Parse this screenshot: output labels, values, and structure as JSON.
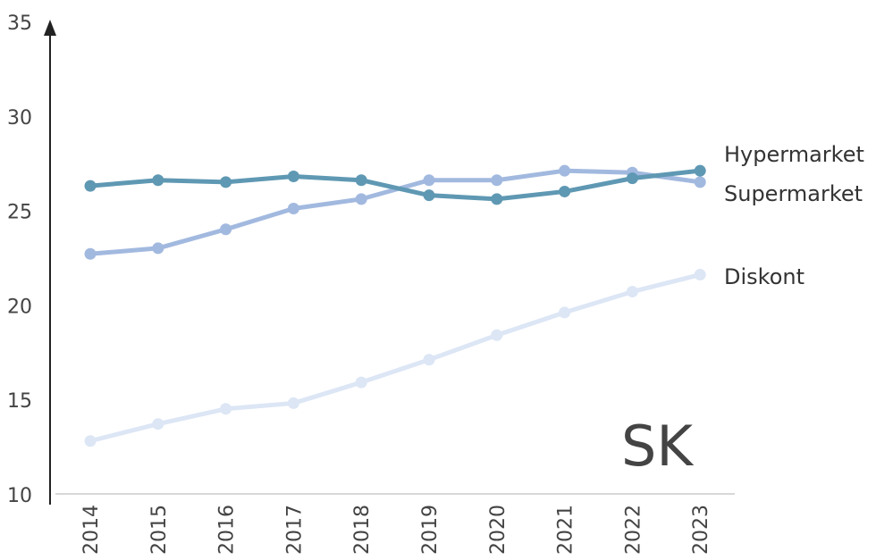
{
  "chart_data": {
    "type": "line",
    "panel_label": "SK",
    "categories": [
      "2014",
      "2015",
      "2016",
      "2017",
      "2018",
      "2019",
      "2020",
      "2021",
      "2022",
      "2023"
    ],
    "ylim": [
      10,
      35
    ],
    "yticks": [
      10,
      15,
      20,
      25,
      30,
      35
    ],
    "grid": false,
    "legend": "inline-right",
    "series": [
      {
        "name": "Hypermarket",
        "color": "#5f98b3",
        "values": [
          26.3,
          26.6,
          26.5,
          26.8,
          26.6,
          25.8,
          25.6,
          26.0,
          26.7,
          27.1
        ]
      },
      {
        "name": "Supermarket",
        "color": "#a2b9df",
        "values": [
          22.7,
          23.0,
          24.0,
          25.1,
          25.6,
          26.6,
          26.6,
          27.1,
          27.0,
          26.5
        ]
      },
      {
        "name": "Diskont",
        "color": "#dce6f5",
        "values": [
          12.8,
          13.7,
          14.5,
          14.8,
          15.9,
          17.1,
          18.4,
          19.6,
          20.7,
          21.6
        ]
      }
    ]
  }
}
